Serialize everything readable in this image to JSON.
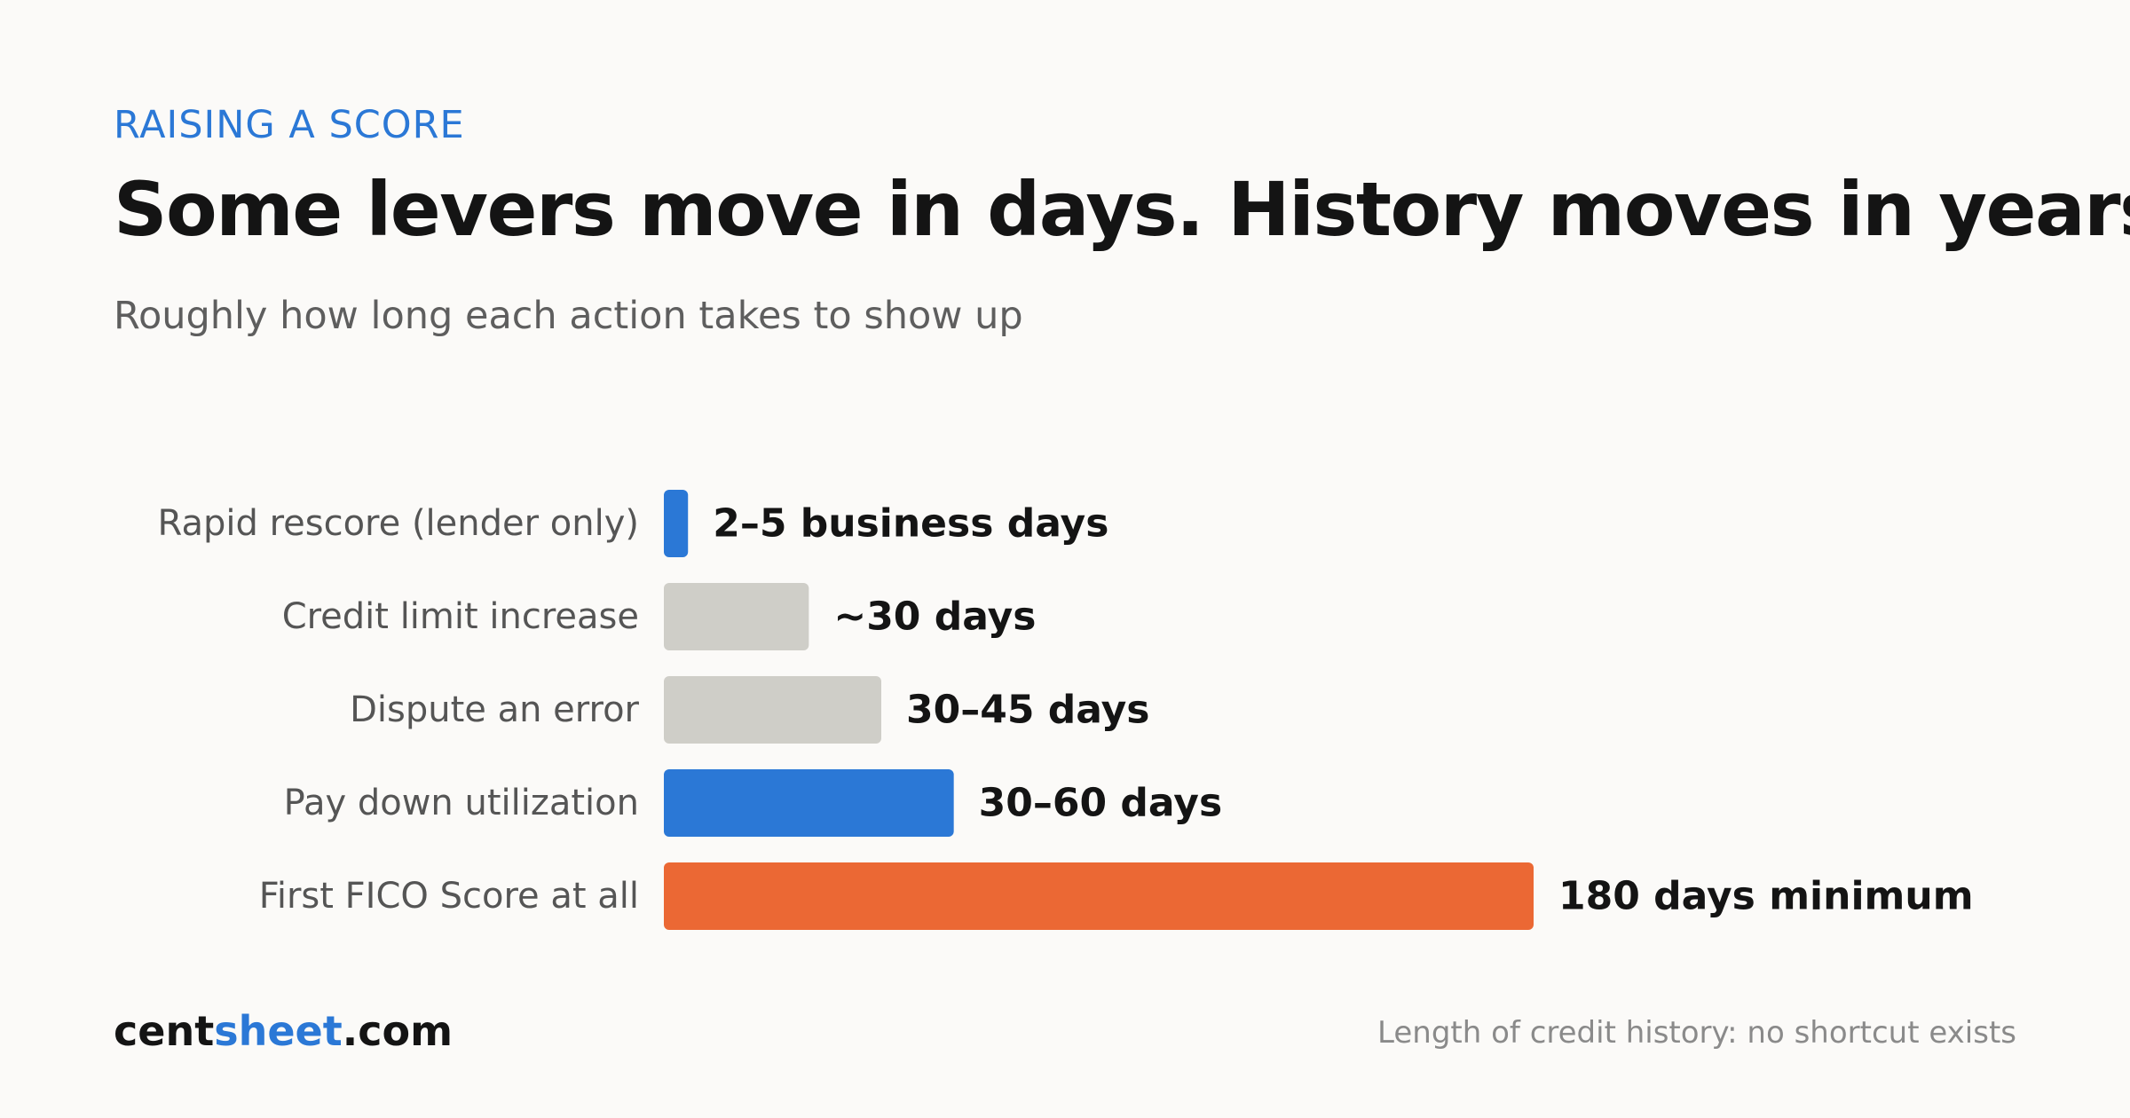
{
  "header": {
    "eyebrow": "RAISING A SCORE",
    "title": "Some levers move in days. History moves in years.",
    "subtitle": "Roughly how long each action takes to show up"
  },
  "chart_data": {
    "type": "bar",
    "orientation": "horizontal",
    "unit": "days",
    "categories": [
      "Rapid rescore (lender only)",
      "Credit limit increase",
      "Dispute an error",
      "Pay down utilization",
      "First FICO Score at all"
    ],
    "values": [
      5,
      30,
      45,
      60,
      180
    ],
    "value_labels": [
      "2–5 business days",
      "~30 days",
      "30–45 days",
      "30–60 days",
      "180 days minimum"
    ],
    "bar_colors": [
      "#2b78d6",
      "#cfcec8",
      "#cfcec8",
      "#2b78d6",
      "#eb6834"
    ],
    "xlim": [
      0,
      180
    ],
    "grid": false,
    "legend": "none"
  },
  "footer": {
    "brand_prefix": "cent",
    "brand_accent": "sheet",
    "brand_suffix": ".com",
    "note": "Length of credit history: no shortcut exists"
  }
}
